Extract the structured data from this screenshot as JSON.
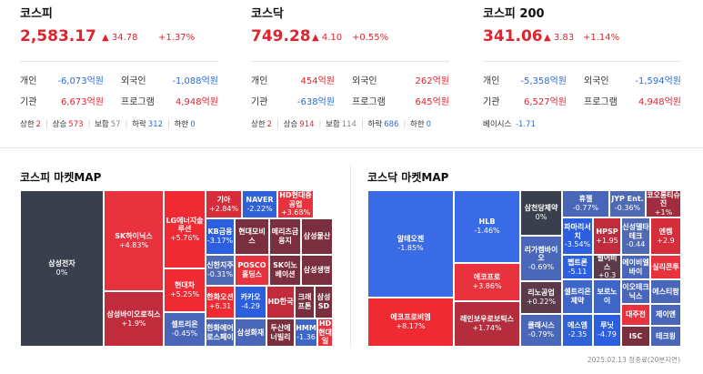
{
  "indices": [
    {
      "name": "코스피",
      "value": "2,583.17",
      "change": "▲ 34.78",
      "percent": "+1.37%",
      "flows": [
        {
          "label": "개인",
          "value": "-6,073억원",
          "dir": "down"
        },
        {
          "label": "외국인",
          "value": "-1,088억원",
          "dir": "down"
        },
        {
          "label": "기관",
          "value": "6,673억원",
          "dir": "up"
        },
        {
          "label": "프로그램",
          "value": "4,948억원",
          "dir": "up"
        }
      ],
      "advance": [
        {
          "label": "상한",
          "value": "2",
          "dir": "up"
        },
        {
          "label": "상승",
          "value": "573",
          "dir": "up"
        },
        {
          "label": "보합",
          "value": "57",
          "dir": "flat"
        },
        {
          "label": "하락",
          "value": "312",
          "dir": "down"
        },
        {
          "label": "하한",
          "value": "0",
          "dir": "down"
        }
      ]
    },
    {
      "name": "코스닥",
      "value": "749.28",
      "change": "▲ 4.10",
      "percent": "+0.55%",
      "flows": [
        {
          "label": "개인",
          "value": "454억원",
          "dir": "up"
        },
        {
          "label": "외국인",
          "value": "262억원",
          "dir": "up"
        },
        {
          "label": "기관",
          "value": "-638억원",
          "dir": "down"
        },
        {
          "label": "프로그램",
          "value": "645억원",
          "dir": "up"
        }
      ],
      "advance": [
        {
          "label": "상한",
          "value": "2",
          "dir": "up"
        },
        {
          "label": "상승",
          "value": "914",
          "dir": "up"
        },
        {
          "label": "보합",
          "value": "114",
          "dir": "flat"
        },
        {
          "label": "하락",
          "value": "686",
          "dir": "down"
        },
        {
          "label": "하한",
          "value": "0",
          "dir": "down"
        }
      ]
    },
    {
      "name": "코스피 200",
      "value": "341.06",
      "change": "▲ 3.83",
      "percent": "+1.14%",
      "flows": [
        {
          "label": "개인",
          "value": "-5,358억원",
          "dir": "down"
        },
        {
          "label": "외국인",
          "value": "-1,594억원",
          "dir": "down"
        },
        {
          "label": "기관",
          "value": "6,527억원",
          "dir": "up"
        },
        {
          "label": "프로그램",
          "value": "4,948억원",
          "dir": "up"
        }
      ],
      "basis": {
        "label": "베이시스",
        "value": "-1.71"
      }
    }
  ],
  "maps": {
    "kospi": {
      "title": "코스피 마켓MAP",
      "tiles": [
        {
          "name": "삼성전자",
          "pct": "0%",
          "color": "#3a3f4d"
        },
        {
          "name": "SK하이닉스",
          "pct": "+4.83%",
          "color": "#e8323e"
        },
        {
          "name": "삼성바이오로직스",
          "pct": "+1.9%",
          "color": "#c12c3c"
        },
        {
          "name": "LG에너지솔루션",
          "pct": "+5.76%",
          "color": "#f02a33"
        },
        {
          "name": "현대차",
          "pct": "+5.25%",
          "color": "#f02a33"
        },
        {
          "name": "셀트리온",
          "pct": "-0.45%",
          "color": "#4a66b8"
        },
        {
          "name": "기아",
          "pct": "+2.84%",
          "color": "#d62d3b"
        },
        {
          "name": "NAVER",
          "pct": "-2.22%",
          "color": "#2f62d6"
        },
        {
          "name": "HD현대중공업",
          "pct": "+3.68%",
          "color": "#e8323e"
        },
        {
          "name": "KB금융",
          "pct": "-3.17%",
          "color": "#2b5fe0"
        },
        {
          "name": "현대모비스",
          "pct": "",
          "color": "#7a2f3e"
        },
        {
          "name": "메리츠금융지",
          "pct": "",
          "color": "#7a2f3e"
        },
        {
          "name": "삼성물산",
          "pct": "",
          "color": "#7a2f3e"
        },
        {
          "name": "신한지주",
          "pct": "-0.31%",
          "color": "#4f6ab3"
        },
        {
          "name": "POSCO홀딩스",
          "pct": "",
          "color": "#e8323e"
        },
        {
          "name": "SK이노베이션",
          "pct": "",
          "color": "#7a2f3e"
        },
        {
          "name": "삼성생명",
          "pct": "",
          "color": "#7a2f3e"
        },
        {
          "name": "카카오",
          "pct": "-4.29",
          "color": "#2b5fe0"
        },
        {
          "name": "HD한국",
          "pct": "",
          "color": "#c12c3c"
        },
        {
          "name": "LG화학",
          "pct": "",
          "color": "#e8323e"
        },
        {
          "name": "고려아연",
          "pct": "",
          "color": "#a02c3e"
        },
        {
          "name": "한화오션",
          "pct": "+6.31",
          "color": "#f02a33"
        },
        {
          "name": "하나금융지주",
          "pct": "",
          "color": "#4f6ab3"
        },
        {
          "name": "HMM",
          "pct": "-1.36",
          "color": "#3d66c8"
        },
        {
          "name": "크래프톤",
          "pct": "",
          "color": "#7a2f3e"
        },
        {
          "name": "삼성SD",
          "pct": "",
          "color": "#7a2f3e"
        },
        {
          "name": "한화에어로스페이",
          "pct": "",
          "color": "#4a66b8"
        },
        {
          "name": "삼성화재",
          "pct": "",
          "color": "#4a66b8"
        },
        {
          "name": "두산에너빌리",
          "pct": "",
          "color": "#7a2f3e"
        },
        {
          "name": "HD현대일",
          "pct": "",
          "color": "#e8323e"
        }
      ]
    },
    "kosdaq": {
      "title": "코스닥 마켓MAP",
      "tiles": [
        {
          "name": "알테오젠",
          "pct": "-1.85%",
          "color": "#3a6be6"
        },
        {
          "name": "에코프로비엠",
          "pct": "+8.17%",
          "color": "#f02a33"
        },
        {
          "name": "HLB",
          "pct": "-1.46%",
          "color": "#3a6be6"
        },
        {
          "name": "에코프로",
          "pct": "+3.86%",
          "color": "#e8323e"
        },
        {
          "name": "레인보우로보틱스",
          "pct": "+1.74%",
          "color": "#b52c3c"
        },
        {
          "name": "삼천당제약",
          "pct": "0%",
          "color": "#3a3f4d"
        },
        {
          "name": "리가켐바이오",
          "pct": "-0.69%",
          "color": "#4a66b8"
        },
        {
          "name": "리노공업",
          "pct": "+0.22%",
          "color": "#5b3a4a"
        },
        {
          "name": "클래시스",
          "pct": "-0.79%",
          "color": "#4a66b8"
        },
        {
          "name": "휴젤",
          "pct": "-0.77%",
          "color": "#4a66b8"
        },
        {
          "name": "파마리서치",
          "pct": "-3.54%",
          "color": "#2b5fe0"
        },
        {
          "name": "펩트론",
          "pct": "-5.11",
          "color": "#2b5fe0"
        },
        {
          "name": "셀트리온제약",
          "pct": "",
          "color": "#3d66c8"
        },
        {
          "name": "에스엠",
          "pct": "-2.35",
          "color": "#2f62d6"
        },
        {
          "name": "JYP Ent.",
          "pct": "-0.36%",
          "color": "#4f6ab3"
        },
        {
          "name": "HPSP",
          "pct": "+1.95",
          "color": "#c12c3c"
        },
        {
          "name": "펄어비스",
          "pct": "+0.3",
          "color": "#5b3a4a"
        },
        {
          "name": "보로노이",
          "pct": "",
          "color": "#3d66c8"
        },
        {
          "name": "루닛",
          "pct": "-4.79",
          "color": "#2b5fe0"
        },
        {
          "name": "코오롱티슈진",
          "pct": "+1%",
          "color": "#a02c3e"
        },
        {
          "name": "신성델타테크",
          "pct": "-0.44",
          "color": "#4f6ab3"
        },
        {
          "name": "엔켐",
          "pct": "+2.9",
          "color": "#d62d3b"
        },
        {
          "name": "에이비엘바이",
          "pct": "",
          "color": "#4a66b8"
        },
        {
          "name": "실리콘투",
          "pct": "",
          "color": "#e8323e"
        },
        {
          "name": "이오테크닉스",
          "pct": "",
          "color": "#4a66b8"
        },
        {
          "name": "에스티팜",
          "pct": "",
          "color": "#4a66b8"
        },
        {
          "name": "대주전",
          "pct": "",
          "color": "#e8323e"
        },
        {
          "name": "제이앤",
          "pct": "",
          "color": "#4a66b8"
        },
        {
          "name": "ISC",
          "pct": "",
          "color": "#7a2f3e"
        },
        {
          "name": "테크윙",
          "pct": "",
          "color": "#4a66b8"
        }
      ]
    }
  },
  "footer": "2025.02.13 장종료(20분지연)"
}
